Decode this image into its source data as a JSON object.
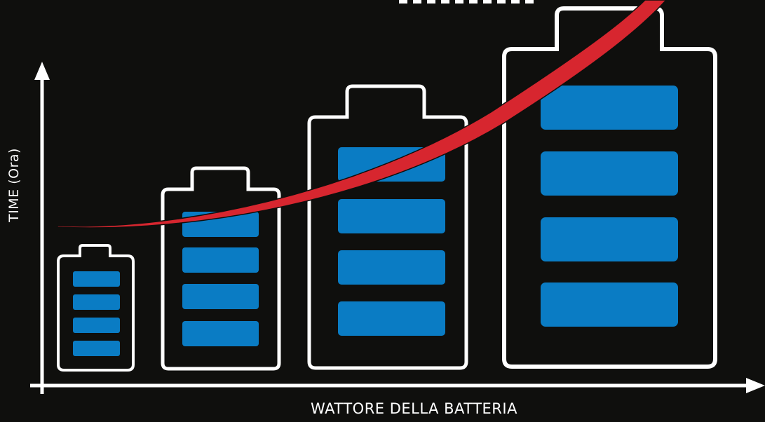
{
  "axes": {
    "y_label": "TIME (Ora)",
    "x_label": "WATTORE DELLA BATTERIA"
  },
  "colors": {
    "background": "#0f0f0d",
    "outline": "#ffffff",
    "cell_fill": "#0a7cc4",
    "curve": "#d7262f"
  },
  "batteries": [
    {
      "size": "small",
      "cells": 4
    },
    {
      "size": "medium",
      "cells": 4
    },
    {
      "size": "large",
      "cells": 4
    },
    {
      "size": "extra-large",
      "cells": 4
    }
  ],
  "curve": {
    "trend": "exponential increase"
  }
}
